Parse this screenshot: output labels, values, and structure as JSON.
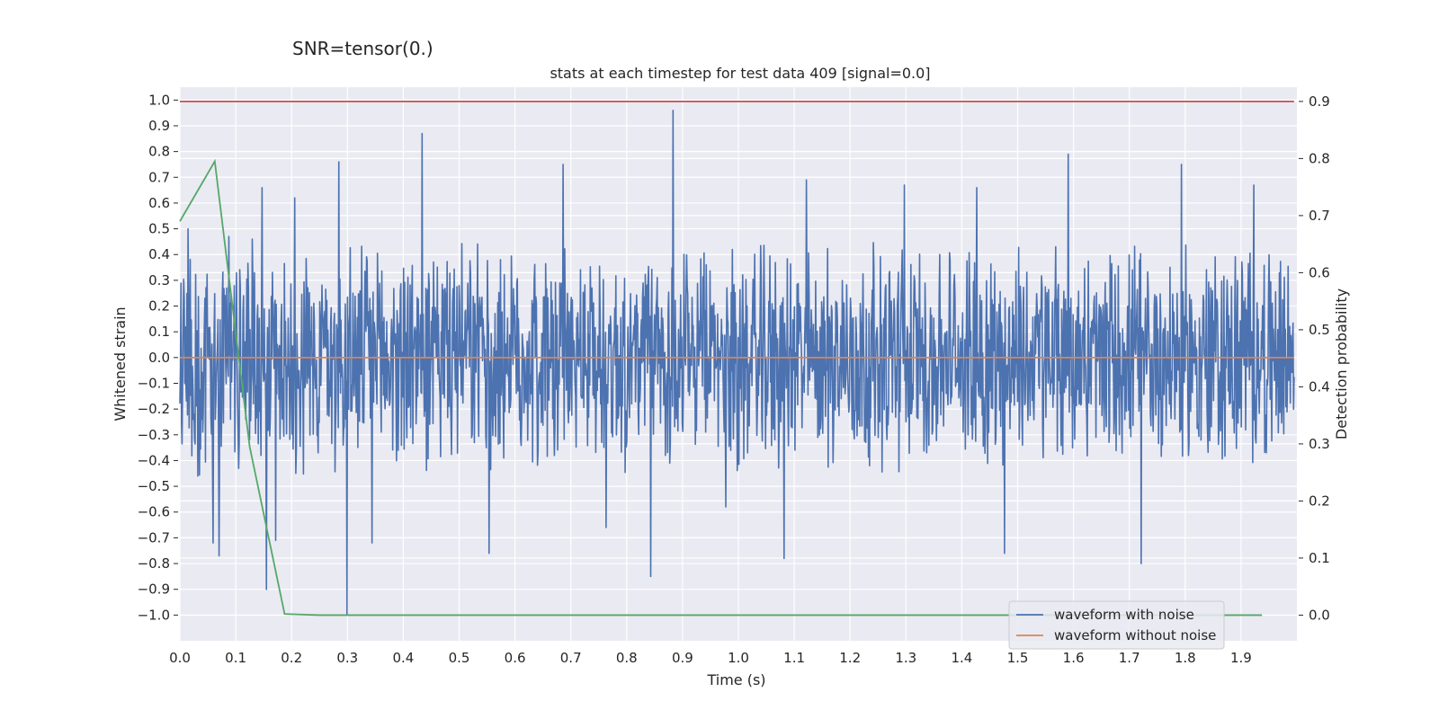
{
  "suptitle": "SNR=tensor(0.)",
  "chart_data": {
    "type": "line",
    "title": "stats at each timestep for test data 409 [signal=0.0]",
    "xlabel": "Time (s)",
    "ylabel": "Whitened strain",
    "y2label": "Detection probability",
    "xlim": [
      0.0,
      2.0
    ],
    "ylim": [
      -1.1,
      1.05
    ],
    "y2lim": [
      -0.045,
      0.925
    ],
    "xticks": [
      "0.0",
      "0.1",
      "0.2",
      "0.3",
      "0.4",
      "0.5",
      "0.6",
      "0.7",
      "0.8",
      "0.9",
      "1.0",
      "1.1",
      "1.2",
      "1.3",
      "1.4",
      "1.5",
      "1.6",
      "1.7",
      "1.8",
      "1.9"
    ],
    "yticks": [
      "1.0",
      "0.9",
      "0.8",
      "0.7",
      "0.6",
      "0.5",
      "0.4",
      "0.3",
      "0.2",
      "0.1",
      "0.0",
      "−0.1",
      "−0.2",
      "−0.3",
      "−0.4",
      "−0.5",
      "−0.6",
      "−0.7",
      "−0.8",
      "−0.9",
      "−1.0"
    ],
    "y2ticks": [
      "0.9",
      "0.8",
      "0.7",
      "0.6",
      "0.5",
      "0.4",
      "0.3",
      "0.2",
      "0.1",
      "0.0"
    ],
    "legend": {
      "placement": "lower-right",
      "entries": [
        "waveform with noise",
        "waveform without noise"
      ]
    },
    "grid": true,
    "series": [
      {
        "name": "waveform with noise",
        "axis": "left",
        "color": "#4c72b0",
        "description": "dense noise, uniformly random in roughly [-0.45, 0.45] with sparse spikes",
        "samples": 2048,
        "spikes": [
          {
            "t": 0.015,
            "y": 0.5
          },
          {
            "t": 0.06,
            "y": -0.72
          },
          {
            "t": 0.07,
            "y": -0.77
          },
          {
            "t": 0.088,
            "y": 0.47
          },
          {
            "t": 0.13,
            "y": 0.46
          },
          {
            "t": 0.148,
            "y": 0.66
          },
          {
            "t": 0.155,
            "y": -0.9
          },
          {
            "t": 0.172,
            "y": -0.71
          },
          {
            "t": 0.206,
            "y": 0.62
          },
          {
            "t": 0.285,
            "y": 0.76
          },
          {
            "t": 0.3,
            "y": -1.0
          },
          {
            "t": 0.345,
            "y": -0.72
          },
          {
            "t": 0.435,
            "y": 0.87
          },
          {
            "t": 0.555,
            "y": -0.76
          },
          {
            "t": 0.688,
            "y": 0.75
          },
          {
            "t": 0.765,
            "y": -0.66
          },
          {
            "t": 0.845,
            "y": -0.85
          },
          {
            "t": 0.885,
            "y": 0.96
          },
          {
            "t": 0.98,
            "y": -0.58
          },
          {
            "t": 1.085,
            "y": -0.78
          },
          {
            "t": 1.125,
            "y": 0.69
          },
          {
            "t": 1.3,
            "y": 0.67
          },
          {
            "t": 1.43,
            "y": 0.66
          },
          {
            "t": 1.48,
            "y": -0.76
          },
          {
            "t": 1.595,
            "y": 0.79
          },
          {
            "t": 1.725,
            "y": -0.8
          },
          {
            "t": 1.798,
            "y": 0.75
          },
          {
            "t": 1.928,
            "y": 0.67
          }
        ]
      },
      {
        "name": "waveform without noise",
        "axis": "left",
        "color": "#dd8452",
        "x": [
          0.0,
          1.995
        ],
        "y": [
          0.0,
          0.0
        ]
      },
      {
        "name": "detection probability",
        "axis": "right",
        "color": "#55a868",
        "x": [
          0.0,
          0.0625,
          0.125,
          0.1875,
          0.25,
          0.3125,
          0.375,
          0.5,
          0.75,
          1.0,
          1.25,
          1.5,
          1.75,
          1.9375
        ],
        "y": [
          0.69,
          0.795,
          0.295,
          0.002,
          0.0,
          0.0,
          0.0,
          0.0,
          0.0,
          0.0,
          0.0,
          0.0,
          0.0,
          0.0
        ]
      },
      {
        "name": "threshold",
        "axis": "right",
        "color": "#c44e52",
        "x": [
          0.0,
          1.995
        ],
        "y": [
          0.9,
          0.9
        ]
      }
    ]
  }
}
